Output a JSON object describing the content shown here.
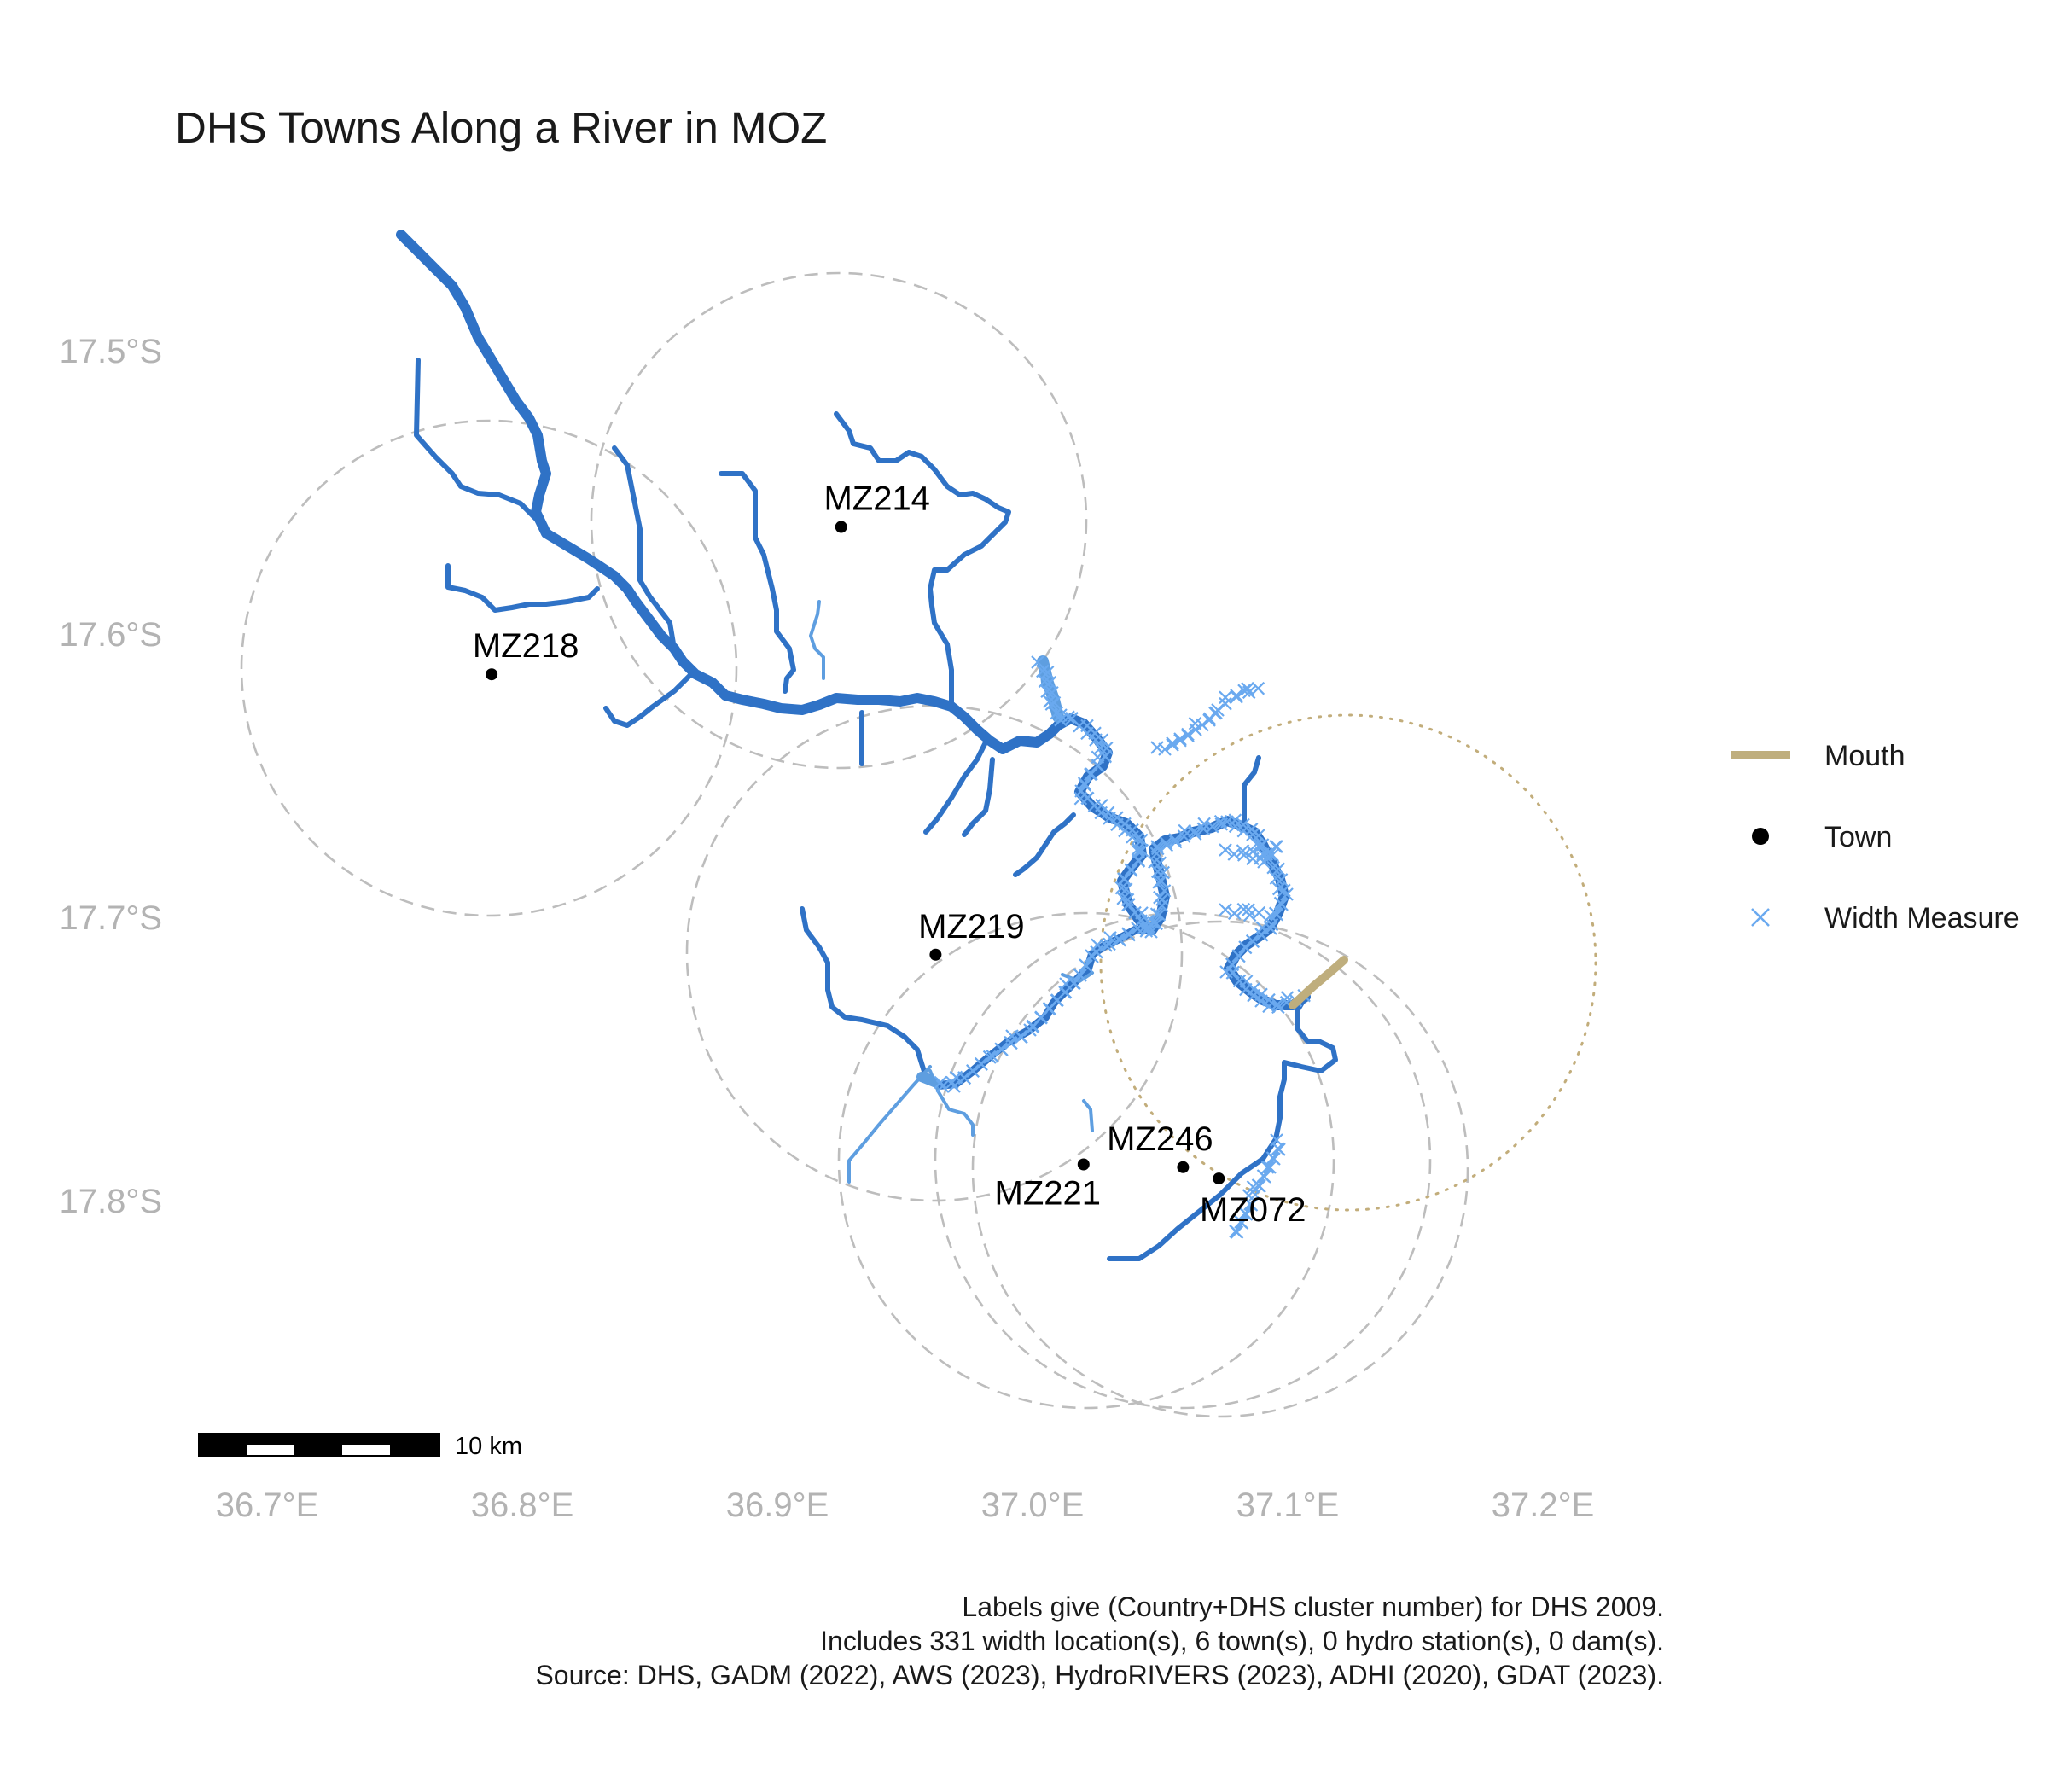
{
  "title": "DHS Towns Along a River in MOZ",
  "axes": {
    "lat_ticks": [
      "17.5°S",
      "17.6°S",
      "17.7°S",
      "17.8°S"
    ],
    "lon_ticks": [
      "36.7°E",
      "36.8°E",
      "36.9°E",
      "37.0°E",
      "37.1°E",
      "37.2°E"
    ]
  },
  "towns": [
    {
      "label": "MZ214",
      "lon": 36.925,
      "lat": -17.561
    },
    {
      "label": "MZ218",
      "lon": 36.788,
      "lat": -17.613
    },
    {
      "label": "MZ219",
      "lon": 36.962,
      "lat": -17.712
    },
    {
      "label": "MZ246",
      "lon": 37.059,
      "lat": -17.787
    },
    {
      "label": "MZ221",
      "lon": 37.02,
      "lat": -17.786
    },
    {
      "label": "MZ072",
      "lon": 37.073,
      "lat": -17.791
    }
  ],
  "legend": {
    "mouth": "Mouth",
    "town": "Town",
    "width": "Width Measure"
  },
  "scale_bar": {
    "label": "10 km"
  },
  "caption": {
    "line1": "Labels give (Country+DHS cluster number) for DHS 2009.",
    "line2": "Includes 331 width location(s), 6 town(s), 0 hydro station(s), 0 dam(s).",
    "line3": "Source: DHS, GADM (2022), AWS (2023), HydroRIVERS (2023), ADHI (2020), GDAT (2023)."
  },
  "colors": {
    "river": "#2f72c6",
    "width_measure": "#6aa9ef",
    "mouth": "#bfae7d",
    "buffer": "#bdbdbd",
    "axis_text": "#b3b3b3"
  }
}
